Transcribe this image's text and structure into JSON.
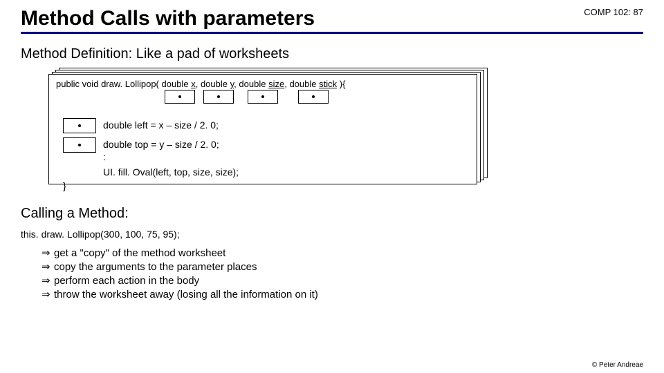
{
  "header": {
    "title": "Method Calls with parameters",
    "course_ref": "COMP 102: 87"
  },
  "section1": {
    "heading": "Method Definition:  Like a pad of worksheets",
    "signature": {
      "prefix": "public void",
      "method_name": "draw. Lollipop(",
      "params": [
        {
          "type": "double",
          "name": "x"
        },
        {
          "type": "double",
          "name": "y"
        },
        {
          "type": "double",
          "name": "size"
        },
        {
          "type": "double",
          "name": "stick"
        }
      ],
      "suffix": "){"
    },
    "body": {
      "line1": "double left  =   x – size / 2. 0;",
      "line2": "double top  =   y – size / 2. 0;",
      "line3": " :",
      "line4": "UI. fill. Oval(left, top, size, size);",
      "close": "}"
    }
  },
  "section2": {
    "heading": "Calling a Method:",
    "call": "this. draw. Lollipop(300, 100, 75, 95);",
    "bullets": [
      "get a \"copy\" of the method worksheet",
      "copy the arguments to the parameter places",
      "perform each action in the body",
      "throw the worksheet away (losing all the information on it)"
    ]
  },
  "footer": "© Peter Andreae",
  "colors": {
    "underline": "#000080",
    "text": "#000000",
    "background": "#ffffff"
  }
}
